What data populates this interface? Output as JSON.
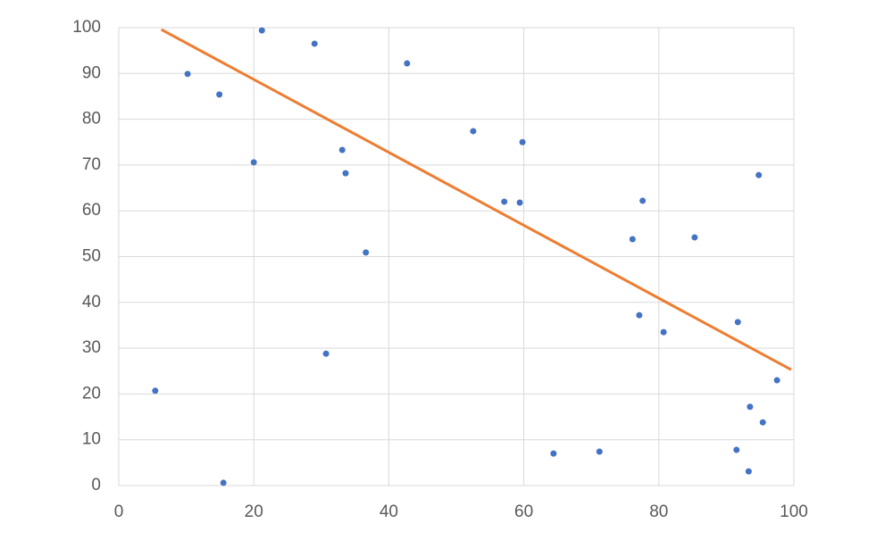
{
  "chart_data": {
    "type": "scatter",
    "x": [
      5.4,
      10.2,
      14.9,
      15.5,
      20.0,
      21.2,
      29.0,
      30.7,
      33.1,
      33.6,
      36.6,
      42.7,
      52.5,
      57.1,
      59.4,
      59.8,
      64.4,
      71.2,
      76.1,
      77.1,
      77.6,
      80.7,
      85.3,
      91.5,
      91.7,
      93.3,
      93.5,
      94.8,
      95.4,
      97.5
    ],
    "values": [
      20.7,
      89.9,
      85.4,
      0.6,
      70.6,
      99.4,
      96.5,
      28.8,
      73.3,
      68.2,
      50.9,
      92.2,
      77.4,
      62.0,
      61.8,
      75.0,
      7.0,
      7.4,
      53.8,
      37.2,
      62.2,
      33.5,
      54.2,
      7.8,
      35.7,
      3.1,
      17.2,
      67.8,
      13.8,
      23.0
    ],
    "color": "#4472c4",
    "trendline": {
      "x": [
        6.3,
        99.6
      ],
      "values": [
        99.6,
        25.3
      ],
      "color": "#ed7d31"
    },
    "xlim": [
      0,
      100
    ],
    "xticks": [
      0,
      20,
      40,
      60,
      80,
      100
    ],
    "ylim": [
      0,
      100
    ],
    "yticks": [
      0,
      10,
      20,
      30,
      40,
      50,
      60,
      70,
      80,
      90,
      100
    ],
    "grid": true
  }
}
